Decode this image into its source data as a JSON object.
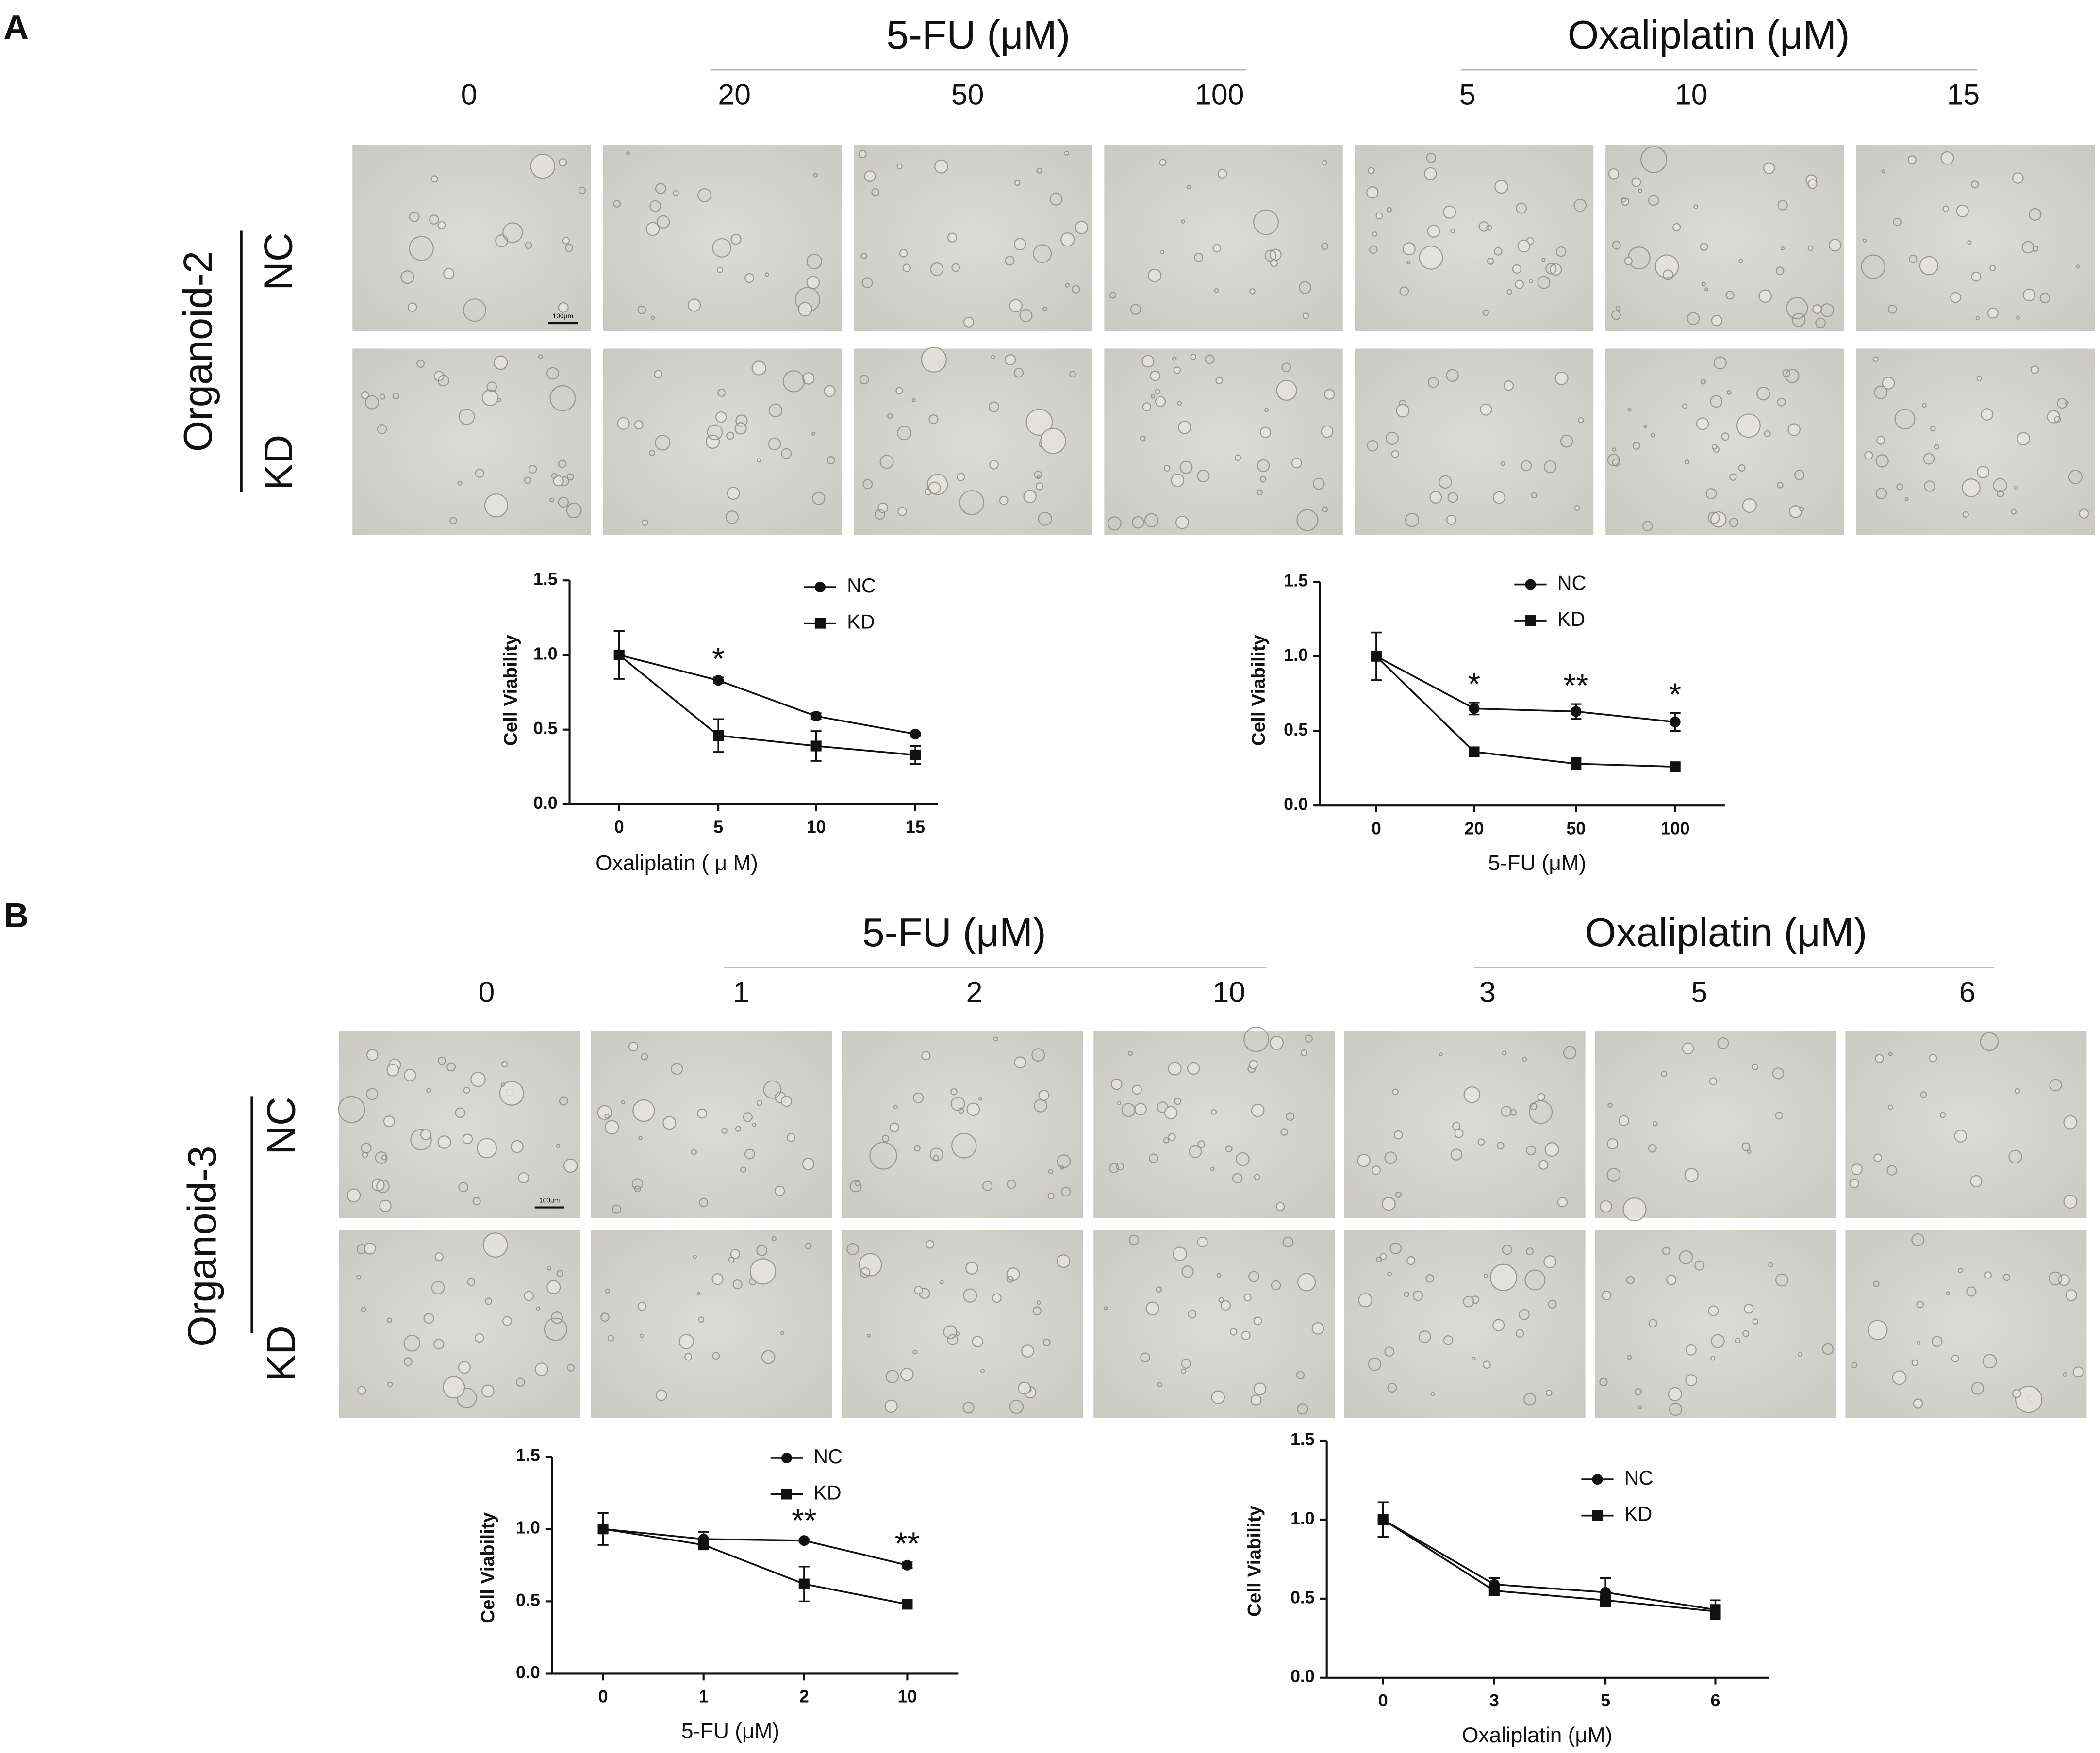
{
  "panels": [
    {
      "label": "A",
      "groups": [
        "5-FU (μM)",
        "Oxaliplatin (μM)"
      ],
      "columns": [
        "0",
        "20",
        "50",
        "100",
        "5",
        "10",
        "15"
      ],
      "sample": "Organoid-2",
      "rows": [
        "NC",
        "KD"
      ],
      "scale_bar": "100μm"
    },
    {
      "label": "B",
      "groups": [
        "5-FU (μM)",
        "Oxaliplatin (μM)"
      ],
      "columns": [
        "0",
        "1",
        "2",
        "10",
        "3",
        "5",
        "6"
      ],
      "sample": "Organoid-3",
      "rows": [
        "NC",
        "KD"
      ],
      "scale_bar": "100μm"
    }
  ],
  "chart_data": [
    {
      "type": "line",
      "xlabel": "Oxaliplatin ( μ M)",
      "ylabel": "Cell Viability",
      "categories": [
        "0",
        "5",
        "10",
        "15"
      ],
      "series": [
        {
          "name": "NC",
          "color": "#111111",
          "marker": "circle",
          "values": [
            1.0,
            0.83,
            0.59,
            0.47
          ],
          "errors": [
            0.16,
            0.02,
            0.02,
            0.01
          ]
        },
        {
          "name": "KD",
          "color": "#111111",
          "marker": "square",
          "values": [
            1.0,
            0.46,
            0.39,
            0.33
          ],
          "errors": [
            0.16,
            0.11,
            0.1,
            0.06
          ]
        }
      ],
      "significance": [
        null,
        "*",
        null,
        null
      ],
      "ylim": [
        0,
        1.5
      ],
      "yticks": [
        {
          "value": 0,
          "label": "0.0"
        },
        {
          "value": 0.5,
          "label": "0.5"
        },
        {
          "value": 1,
          "label": "1.0"
        },
        {
          "value": 1.5,
          "label": "1.5"
        }
      ]
    },
    {
      "type": "line",
      "xlabel": "5-FU (μM)",
      "ylabel": "Cell Viability",
      "categories": [
        "0",
        "20",
        "50",
        "100"
      ],
      "series": [
        {
          "name": "NC",
          "color": "#111111",
          "marker": "circle",
          "values": [
            1.0,
            0.65,
            0.63,
            0.56
          ],
          "errors": [
            0.16,
            0.04,
            0.05,
            0.06
          ]
        },
        {
          "name": "KD",
          "color": "#111111",
          "marker": "square",
          "values": [
            1.0,
            0.36,
            0.28,
            0.26
          ],
          "errors": [
            0.16,
            0.01,
            0.04,
            0.01
          ]
        }
      ],
      "significance": [
        null,
        "*",
        "**",
        "*"
      ],
      "ylim": [
        0,
        1.5
      ],
      "yticks": [
        {
          "value": 0,
          "label": "0.0"
        },
        {
          "value": 0.5,
          "label": "0.5"
        },
        {
          "value": 1,
          "label": "1.0"
        },
        {
          "value": 1.5,
          "label": "1.5"
        }
      ]
    },
    {
      "type": "line",
      "xlabel": "5-FU (μM)",
      "ylabel": "Cell Viability",
      "categories": [
        "0",
        "1",
        "2",
        "10"
      ],
      "series": [
        {
          "name": "NC",
          "color": "#111111",
          "marker": "circle",
          "values": [
            1.0,
            0.93,
            0.92,
            0.75
          ],
          "errors": [
            0.11,
            0.05,
            0.01,
            0.02
          ]
        },
        {
          "name": "KD",
          "color": "#111111",
          "marker": "square",
          "values": [
            1.0,
            0.89,
            0.62,
            0.48
          ],
          "errors": [
            0.11,
            0.02,
            0.12,
            0.01
          ]
        }
      ],
      "significance": [
        null,
        null,
        "**",
        "**"
      ],
      "ylim": [
        0,
        1.5
      ],
      "yticks": [
        {
          "value": 0,
          "label": "0.0"
        },
        {
          "value": 0.5,
          "label": "0.5"
        },
        {
          "value": 1,
          "label": "1.0"
        },
        {
          "value": 1.5,
          "label": "1.5"
        }
      ]
    },
    {
      "type": "line",
      "xlabel": "Oxaliplatin (μM)",
      "ylabel": "Cell Viability",
      "categories": [
        "0",
        "3",
        "5",
        "6"
      ],
      "series": [
        {
          "name": "NC",
          "color": "#111111",
          "marker": "circle",
          "values": [
            1.0,
            0.59,
            0.54,
            0.43
          ],
          "errors": [
            0.11,
            0.04,
            0.09,
            0.06
          ]
        },
        {
          "name": "KD",
          "color": "#111111",
          "marker": "square",
          "values": [
            1.0,
            0.55,
            0.49,
            0.42
          ],
          "errors": [
            0.11,
            0.03,
            0.04,
            0.04
          ]
        }
      ],
      "significance": [
        null,
        null,
        null,
        null
      ],
      "ylim": [
        0,
        1.5
      ],
      "yticks": [
        {
          "value": 0,
          "label": "0.0"
        },
        {
          "value": 0.5,
          "label": "0.5"
        },
        {
          "value": 1,
          "label": "1.0"
        },
        {
          "value": 1.5,
          "label": "1.5"
        }
      ]
    }
  ]
}
